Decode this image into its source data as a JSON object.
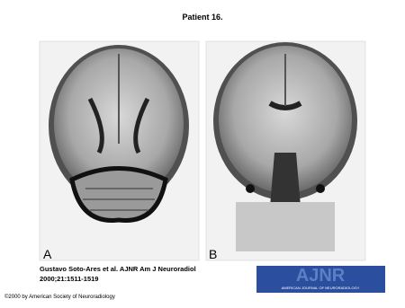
{
  "header": {
    "title": "Patient 16."
  },
  "figure": {
    "panels": [
      {
        "label": "A"
      },
      {
        "label": "B"
      }
    ]
  },
  "citation": {
    "line1": "Gustavo Soto-Ares et al. AJNR Am J Neuroradiol",
    "line2": "2000;21:1511-1519"
  },
  "logo": {
    "mark": "AJNR",
    "caption": "AMERICAN JOURNAL OF NEURORADIOLOGY"
  },
  "footer": {
    "copyright": "©2000 by American Society of Neuroradiology"
  }
}
